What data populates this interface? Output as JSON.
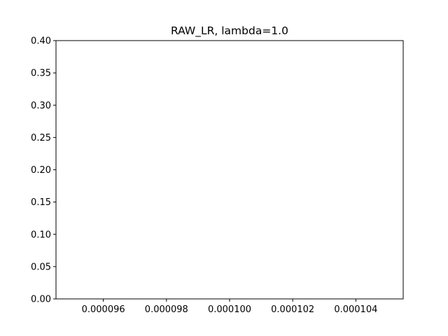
{
  "chart_data": {
    "type": "line",
    "title": "RAW_LR, lambda=1.0",
    "xlabel": "",
    "ylabel": "",
    "xlim": [
      9.45e-05,
      0.0001055
    ],
    "ylim": [
      0.0,
      0.4
    ],
    "x_ticks": [
      9.6e-05,
      9.8e-05,
      0.0001,
      0.000102,
      0.000104
    ],
    "x_tick_labels": [
      "0.000096",
      "0.000098",
      "0.000100",
      "0.000102",
      "0.000104"
    ],
    "y_ticks": [
      0.0,
      0.05,
      0.1,
      0.15,
      0.2,
      0.25,
      0.3,
      0.35,
      0.4
    ],
    "y_tick_labels": [
      "0.00",
      "0.05",
      "0.10",
      "0.15",
      "0.20",
      "0.25",
      "0.30",
      "0.35",
      "0.40"
    ],
    "grid": false,
    "series": []
  },
  "colors": {
    "axis": "#000000",
    "background": "#ffffff"
  }
}
